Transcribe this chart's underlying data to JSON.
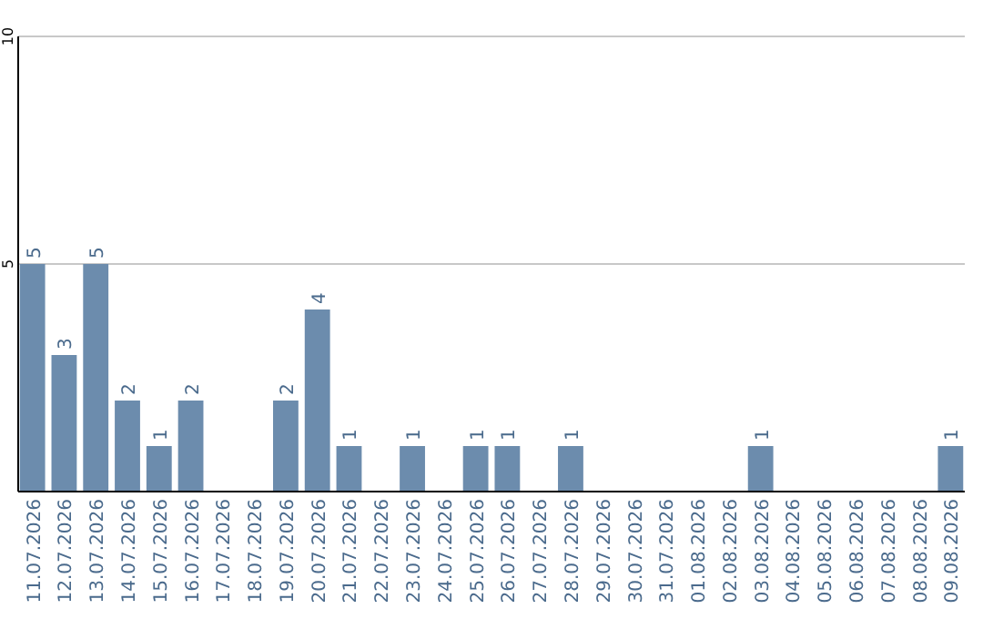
{
  "chart_data": {
    "type": "bar",
    "categories": [
      "11.07.2026",
      "12.07.2026",
      "13.07.2026",
      "14.07.2026",
      "15.07.2026",
      "16.07.2026",
      "17.07.2026",
      "18.07.2026",
      "19.07.2026",
      "20.07.2026",
      "21.07.2026",
      "22.07.2026",
      "23.07.2026",
      "24.07.2026",
      "25.07.2026",
      "26.07.2026",
      "27.07.2026",
      "28.07.2026",
      "29.07.2026",
      "30.07.2026",
      "31.07.2026",
      "01.08.2026",
      "02.08.2026",
      "03.08.2026",
      "04.08.2026",
      "05.08.2026",
      "06.08.2026",
      "07.08.2026",
      "08.08.2026",
      "09.08.2026"
    ],
    "values": [
      5,
      3,
      5,
      2,
      1,
      2,
      0,
      0,
      2,
      4,
      1,
      0,
      1,
      0,
      1,
      1,
      0,
      1,
      0,
      0,
      0,
      0,
      0,
      1,
      0,
      0,
      0,
      0,
      0,
      1
    ],
    "value_labels": [
      "5",
      "3",
      "5",
      "2",
      "1",
      "2",
      null,
      null,
      "2",
      "4",
      "1",
      null,
      "1",
      null,
      "1",
      "1",
      null,
      "1",
      null,
      null,
      null,
      null,
      null,
      "1",
      null,
      null,
      null,
      null,
      null,
      "1"
    ],
    "color": "#6c8cad",
    "ylim": [
      0,
      10
    ],
    "yticks": [
      {
        "value": 0,
        "label": null
      },
      5,
      10
    ],
    "grid": "y"
  }
}
